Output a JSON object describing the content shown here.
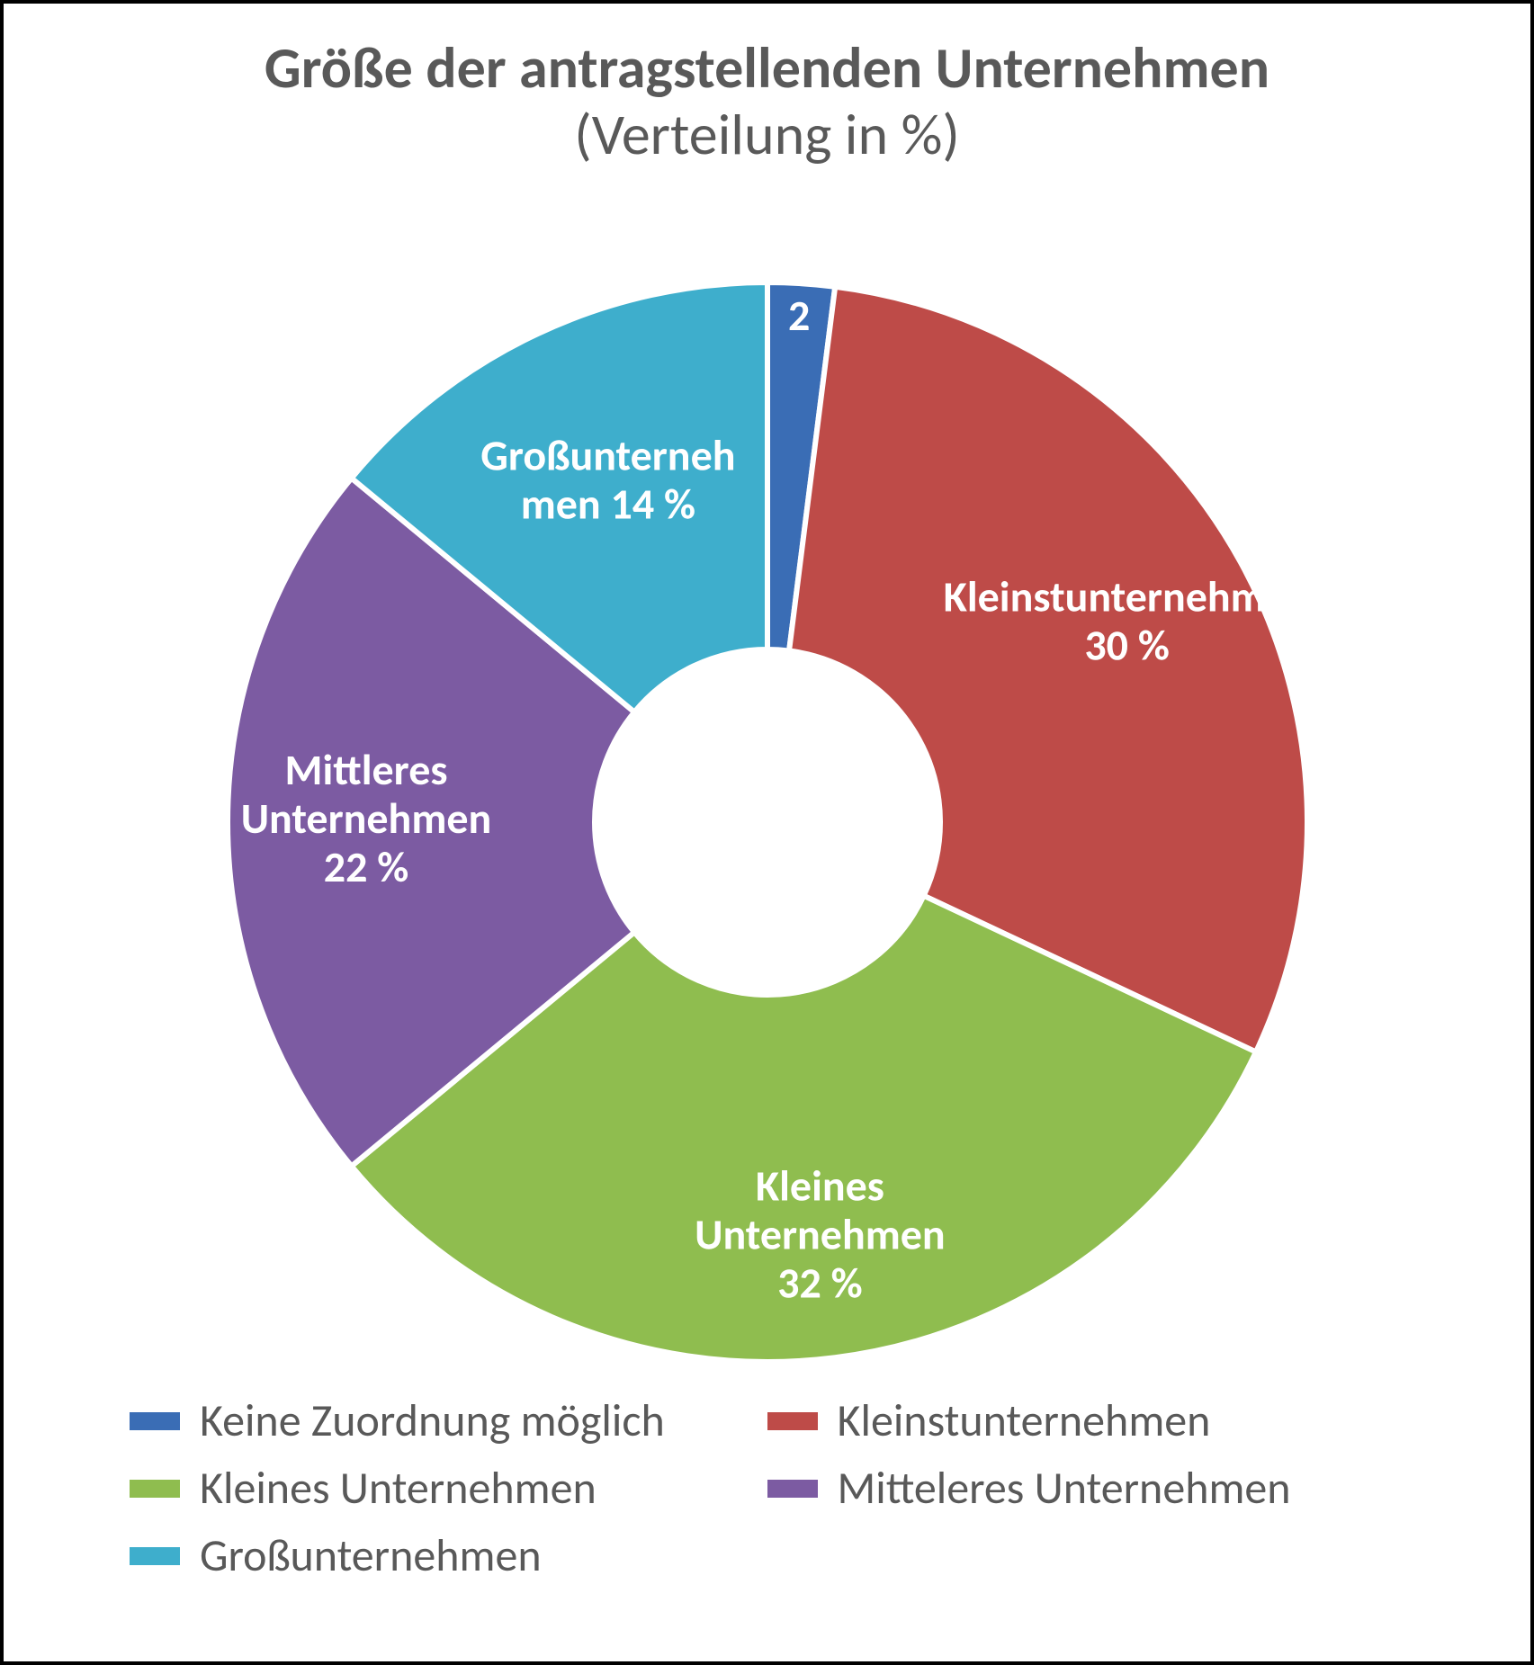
{
  "title": {
    "main": "Größe der antragstellenden Unternehmen",
    "sub": "(Verteilung in %)",
    "color": "#595959",
    "main_fontsize": 64,
    "sub_fontsize": 64,
    "main_weight": 700,
    "sub_weight": 400
  },
  "chart": {
    "type": "donut",
    "background_color": "#ffffff",
    "border_color": "#000000",
    "inner_radius_ratio": 0.32,
    "slice_gap_color": "#ffffff",
    "slice_gap_width": 6,
    "label_color": "#ffffff",
    "label_fontsize": 48,
    "label_weight": 700,
    "slices": [
      {
        "key": "keine",
        "label_lines": [
          "2"
        ],
        "value": 2,
        "color": "#3a6db5"
      },
      {
        "key": "kleinst",
        "label_lines": [
          "Kleinstunternehmen",
          "30 %"
        ],
        "value": 30,
        "color": "#be4b48"
      },
      {
        "key": "kleines",
        "label_lines": [
          "Kleines",
          "Unternehmen",
          "32 %"
        ],
        "value": 32,
        "color": "#8fbd4f"
      },
      {
        "key": "mittleres",
        "label_lines": [
          "Mittleres",
          "Unternehmen",
          "22 %"
        ],
        "value": 22,
        "color": "#7c5ba2"
      },
      {
        "key": "gross",
        "label_lines": [
          "Großunterneh",
          "men 14 %"
        ],
        "value": 14,
        "color": "#3eaecc"
      }
    ]
  },
  "legend": {
    "font_color": "#595959",
    "font_size": 50,
    "swatch_width": 56,
    "swatch_height": 20,
    "items": [
      {
        "label": "Keine Zuordnung möglich",
        "color": "#3a6db5"
      },
      {
        "label": "Kleinstunternehmen",
        "color": "#be4b48"
      },
      {
        "label": "Kleines Unternehmen",
        "color": "#8fbd4f"
      },
      {
        "label": "Mitteleres Unternehmen",
        "color": "#7c5ba2"
      },
      {
        "label": "Großunternehmen",
        "color": "#3eaecc"
      }
    ]
  }
}
